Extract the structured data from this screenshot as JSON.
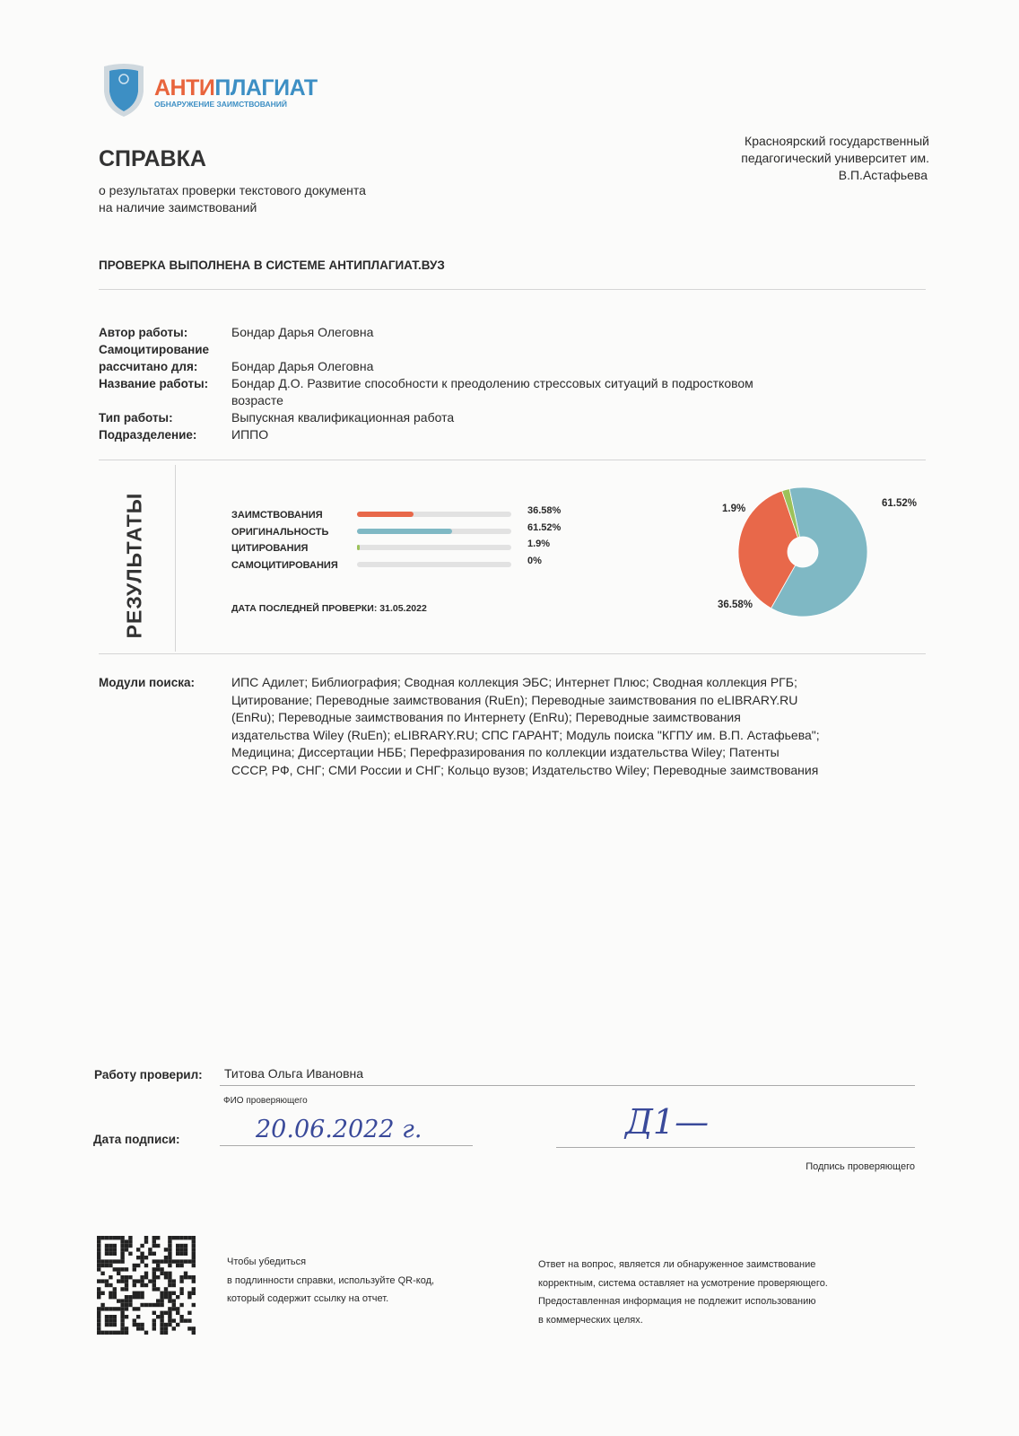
{
  "logo": {
    "name_part1": "АНТИ",
    "name_part2": "ПЛАГИАТ",
    "tagline": "ОБНАРУЖЕНИЕ ЗАИМСТВОВАНИЙ",
    "shield_color": "#3d8fc4"
  },
  "header": {
    "title": "СПРАВКА",
    "subtitle_lines": [
      "о результатах проверки текстового документа",
      "на наличие заимствований"
    ],
    "organization_lines": [
      "Красноярский государственный",
      "педагогический университет им.",
      "В.П.Астафьева"
    ],
    "system_line": "ПРОВЕРКА ВЫПОЛНЕНА В СИСТЕМЕ АНТИПЛАГИАТ.ВУЗ"
  },
  "fields": [
    {
      "label": "Автор работы:",
      "value": "Бондар Дарья Олеговна"
    },
    {
      "label": "Самоцитирование",
      "value": ""
    },
    {
      "label": "рассчитано для:",
      "value": "Бондар Дарья Олеговна"
    },
    {
      "label": "Название работы:",
      "value": "Бондар Д.О. Развитие способности к преодолению стрессовых ситуаций в подростковом"
    },
    {
      "label": "",
      "value": "возрасте"
    },
    {
      "label": "Тип работы:",
      "value": "Выпускная квалификационная работа"
    },
    {
      "label": "Подразделение:",
      "value": "ИППО"
    }
  ],
  "results": {
    "heading": "РЕЗУЛЬТАТЫ",
    "rows": [
      {
        "label": "ЗАИМСТВОВАНИЯ",
        "value_text": "36.58%",
        "value": 36.58,
        "color": "#e8684a"
      },
      {
        "label": "ОРИГИНАЛЬНОСТЬ",
        "value_text": "61.52%",
        "value": 61.52,
        "color": "#7fb8c4"
      },
      {
        "label": "ЦИТИРОВАНИЯ",
        "value_text": "1.9%",
        "value": 1.9,
        "color": "#9cc25a"
      },
      {
        "label": "САМОЦИТИРОВАНИЯ",
        "value_text": "0%",
        "value": 0,
        "color": "#f0d060"
      }
    ],
    "last_check": "ДАТА ПОСЛЕДНЕЙ ПРОВЕРКИ: 31.05.2022",
    "pie_labels": {
      "original": "61.52%",
      "borrowed": "36.58%",
      "cited": "1.9%"
    }
  },
  "modules": {
    "label": "Модули поиска:",
    "lines": [
      "ИПС Адилет; Библиография; Сводная коллекция ЭБС; Интернет Плюс; Сводная коллекция РГБ;",
      "Цитирование; Переводные заимствования (RuEn); Переводные заимствования по eLIBRARY.RU",
      "(EnRu); Переводные заимствования по Интернету (EnRu); Переводные заимствования",
      "издательства Wiley (RuEn); eLIBRARY.RU; СПС ГАРАНТ; Модуль поиска \"КГПУ им. В.П. Астафьева\";",
      "Медицина; Диссертации НББ; Перефразирования по коллекции издательства Wiley; Патенты",
      "СССР, РФ, СНГ; СМИ России и СНГ; Кольцо вузов; Издательство Wiley; Переводные заимствования"
    ]
  },
  "signature": {
    "checked_by_label": "Работу проверил:",
    "checked_by": "Титова Ольга Ивановна",
    "fio_caption": "ФИО проверяющего",
    "date_label": "Дата подписи:",
    "date_handwritten": "20.06.2022 г.",
    "signature_caption": "Подпись проверяющего",
    "signature_handwritten": "Д1—"
  },
  "footer": {
    "qr_note_lines": [
      "Чтобы убедиться",
      "в подлинности справки, используйте QR-код,",
      "который содержит ссылку на отчет."
    ],
    "disclaimer_lines": [
      "Ответ на вопрос, является ли обнаруженное заимствование",
      "корректным, система оставляет на усмотрение проверяющего.",
      "Предоставленная информация не подлежит использованию",
      "в коммерческих целях."
    ]
  }
}
